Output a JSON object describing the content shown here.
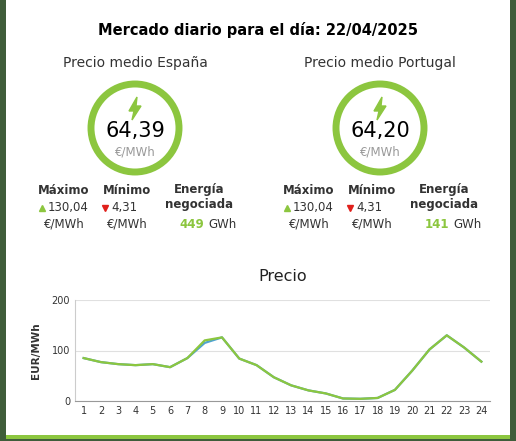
{
  "header": {
    "title": "Mercado diario para el día: 22/04/2025"
  },
  "panels": [
    {
      "title": "Precio medio España",
      "value": "64,39",
      "unit": "€/MWh",
      "stats": [
        {
          "label": "Máximo",
          "value": "130,04",
          "unit": "€/MWh"
        },
        {
          "label": "Mínimo",
          "value": "4,31",
          "unit": "€/MWh"
        },
        {
          "label": "Energía negociada",
          "value": "449",
          "unit": "GWh"
        }
      ]
    },
    {
      "title": "Precio medio Portugal",
      "value": "64,20",
      "unit": "€/MWh",
      "stats": [
        {
          "label": "Máximo",
          "value": "130,04",
          "unit": "€/MWh"
        },
        {
          "label": "Mínimo",
          "value": "4,31",
          "unit": "€/MWh"
        },
        {
          "label": "Energía negociada",
          "value": "141",
          "unit": "GWh"
        }
      ]
    }
  ],
  "chart_data": {
    "type": "line",
    "title": "Precio",
    "y_label": "EUR/MWh",
    "x": [
      1,
      2,
      3,
      4,
      5,
      6,
      7,
      8,
      9,
      10,
      11,
      12,
      13,
      14,
      15,
      16,
      17,
      18,
      19,
      20,
      21,
      22,
      23,
      24
    ],
    "xlim": [
      0.5,
      24.5
    ],
    "xticks": [
      1,
      2,
      3,
      4,
      5,
      6,
      7,
      8,
      9,
      10,
      11,
      12,
      13,
      14,
      15,
      16,
      17,
      18,
      19,
      20,
      21,
      22,
      23,
      24
    ],
    "ylim": [
      0,
      200
    ],
    "yticks": [
      0,
      100,
      200
    ],
    "grid": true,
    "series": [
      {
        "color": "#4fa3d1",
        "values": [
          85,
          77,
          73,
          71,
          73,
          67,
          85,
          115,
          126,
          84,
          71,
          47,
          31,
          21,
          15,
          5,
          4.31,
          6,
          22,
          60,
          102,
          130.04,
          106,
          78
        ]
      },
      {
        "color": "#8cc63f",
        "values": [
          85,
          77,
          73,
          71,
          73,
          67,
          85,
          120,
          126,
          84,
          71,
          47,
          31,
          21,
          15,
          5,
          4.31,
          6,
          22,
          60,
          102,
          130.04,
          106,
          78
        ]
      }
    ]
  }
}
